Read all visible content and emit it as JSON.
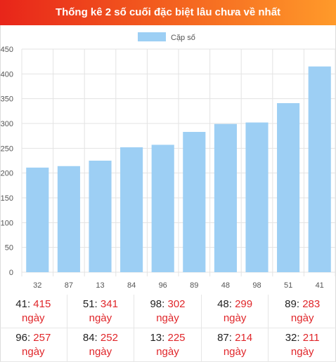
{
  "header": {
    "title": "Thống kê 2 số cuối đặc biệt lâu chưa về nhất"
  },
  "chart_data": {
    "type": "bar",
    "title": "",
    "categories": [
      "32",
      "87",
      "13",
      "84",
      "96",
      "89",
      "48",
      "98",
      "51",
      "41"
    ],
    "series": [
      {
        "name": "Cặp số",
        "values": [
          211,
          214,
          225,
          252,
          257,
          283,
          299,
          302,
          341,
          415
        ],
        "color": "#9dcff4"
      }
    ],
    "y_ticks": [
      "0",
      "50",
      "100",
      "150",
      "200",
      "250",
      "300",
      "350",
      "400",
      "450"
    ],
    "ylim": [
      0,
      450
    ],
    "grid": true,
    "legend_position": "top-center"
  },
  "stats": {
    "unit": "ngày",
    "items": [
      {
        "number": "41",
        "days": "415"
      },
      {
        "number": "51",
        "days": "341"
      },
      {
        "number": "98",
        "days": "302"
      },
      {
        "number": "48",
        "days": "299"
      },
      {
        "number": "89",
        "days": "283"
      },
      {
        "number": "96",
        "days": "257"
      },
      {
        "number": "84",
        "days": "252"
      },
      {
        "number": "13",
        "days": "225"
      },
      {
        "number": "87",
        "days": "214"
      },
      {
        "number": "32",
        "days": "211"
      }
    ]
  }
}
